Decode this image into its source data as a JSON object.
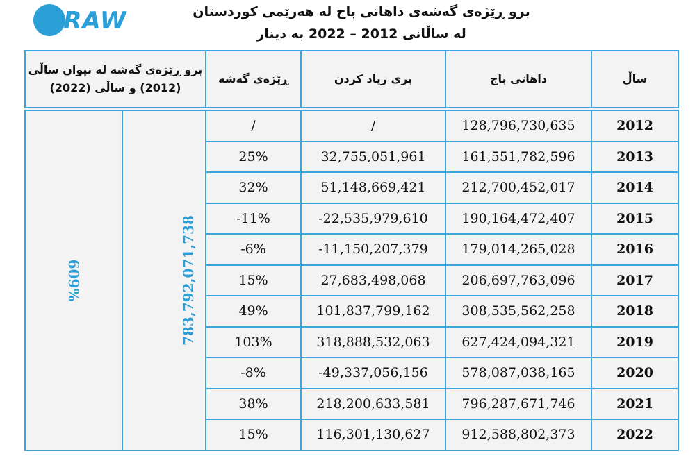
{
  "logo": "DRAW",
  "header": {
    "title_line1": "برو ڕێژەی گەشەی داهاتی باج لە هەرێمی کوردستان",
    "title_line2": "لە ساڵانی 2012 – 2022  بە دینار"
  },
  "table": {
    "headers": {
      "total": "برو ڕێژەی گەشە لە نیوان ساڵی (2012) و ساڵی (2022)",
      "growth": "ڕێژەی گەشە",
      "increase": "بری زیاد کردن",
      "revenue": "داهاتی باج",
      "year": "ساڵ"
    },
    "total_increase": "783,792,071,738",
    "total_growth": "%609",
    "rows": [
      [
        "2012",
        "128,796,730,635",
        "/",
        "/"
      ],
      [
        "2013",
        "161,551,782,596",
        "32,755,051,961",
        "25%"
      ],
      [
        "2014",
        "212,700,452,017",
        "51,148,669,421",
        "32%"
      ],
      [
        "2015",
        "190,164,472,407",
        "-22,535,979,610",
        "-11%"
      ],
      [
        "2016",
        "179,014,265,028",
        "-11,150,207,379",
        "-6%"
      ],
      [
        "2017",
        "206,697,763,096",
        "27,683,498,068",
        "15%"
      ],
      [
        "2018",
        "308,535,562,258",
        "101,837,799,162",
        "49%"
      ],
      [
        "2019",
        "627,424,094,321",
        "318,888,532,063",
        "103%"
      ],
      [
        "2020",
        "578,087,038,165",
        "-49,337,056,156",
        "-8%"
      ],
      [
        "2021",
        "796,287,671,746",
        "218,200,633,581",
        "38%"
      ],
      [
        "2022",
        "912,588,802,373",
        "116,301,130,627",
        "15%"
      ]
    ]
  }
}
